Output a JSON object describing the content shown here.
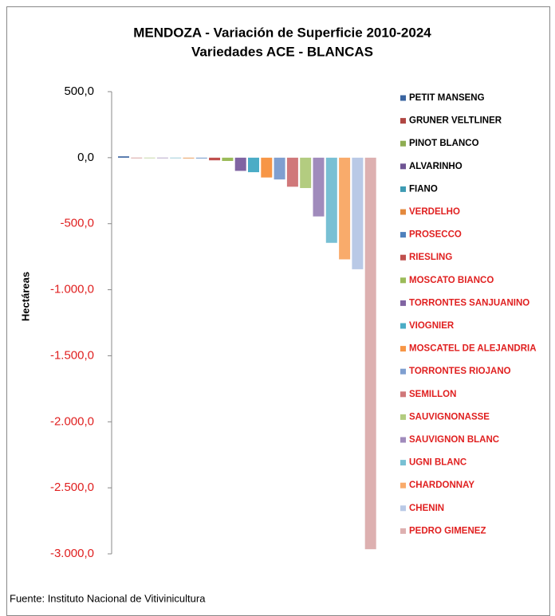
{
  "chart_data": {
    "type": "bar",
    "title": "MENDOZA - Variación de Superficie  2010-2024",
    "subtitle": "Variedades ACE - BLANCAS",
    "y_label": "Hectáreas",
    "source": "Fuente: Instituto Nacional de Vitivinicultura",
    "categories": [
      "PETIT MANSENG",
      "GRUNER VELTLINER",
      "PINOT BLANCO",
      "ALVARINHO",
      "FIANO",
      "VERDELHO",
      "PROSECCO",
      "RIESLING",
      "MOSCATO BIANCO",
      "TORRONTES SANJUANINO",
      "VIOGNIER",
      "MOSCATEL DE ALEJANDRIA",
      "TORRONTES RIOJANO",
      "SEMILLON",
      "SAUVIGNONASSE",
      "SAUVIGNON BLANC",
      "UGNI BLANC",
      "CHARDONNAY",
      "CHENIN",
      "PEDRO GIMENEZ"
    ],
    "values": [
      10,
      -3,
      -3,
      -3,
      -3,
      -5,
      -5,
      -20,
      -25,
      -100,
      -110,
      -150,
      -165,
      -220,
      -230,
      -445,
      -645,
      -770,
      -845,
      -2965
    ],
    "colors": [
      "#3A64A0",
      "#B04743",
      "#8EAD52",
      "#6E5493",
      "#3E9BB3",
      "#E3893E",
      "#4F81BD",
      "#C0504D",
      "#9BBB59",
      "#8064A2",
      "#4BACC6",
      "#F79646",
      "#7F9FD0",
      "#D0787A",
      "#B3CC80",
      "#A08BBC",
      "#78C0D4",
      "#F9AB6B",
      "#B9C9E6",
      "#DDB0B0"
    ],
    "legend_text_colors": [
      "#000000",
      "#000000",
      "#000000",
      "#000000",
      "#000000",
      "#E02020",
      "#E02020",
      "#E02020",
      "#E02020",
      "#E02020",
      "#E02020",
      "#E02020",
      "#E02020",
      "#E02020",
      "#E02020",
      "#E02020",
      "#E02020",
      "#E02020",
      "#E02020",
      "#E02020"
    ],
    "negative_tick_color": "#E02020",
    "ylim": [
      -3000,
      500
    ],
    "yticks": [
      {
        "value": 500,
        "label": "500,0"
      },
      {
        "value": 0,
        "label": "0,0"
      },
      {
        "value": -500,
        "label": "-500,0"
      },
      {
        "value": -1000,
        "label": "-1.000,0"
      },
      {
        "value": -1500,
        "label": "-1.500,0"
      },
      {
        "value": -2000,
        "label": "-2.000,0"
      },
      {
        "value": -2500,
        "label": "-2.500,0"
      },
      {
        "value": -3000,
        "label": "-3.000,0"
      }
    ],
    "legend": "right"
  }
}
